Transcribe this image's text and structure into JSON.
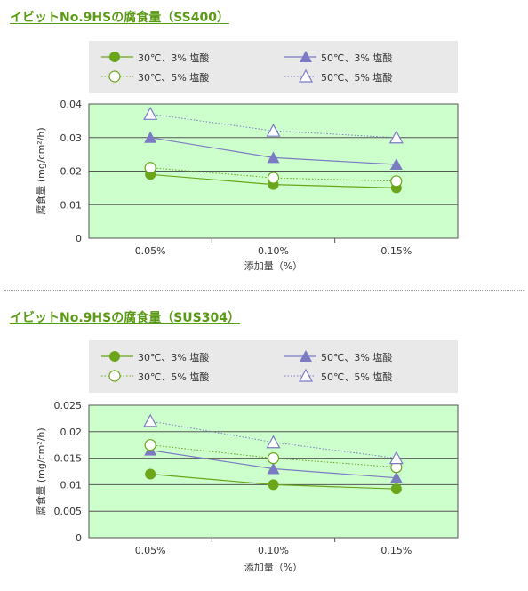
{
  "sections": [
    {
      "title": "イビットNo.9HSの腐食量（SS400）",
      "legend": [
        {
          "label": "30℃、3% 塩酸"
        },
        {
          "label": "50℃、3% 塩酸"
        },
        {
          "label": "30℃、5% 塩酸"
        },
        {
          "label": "50℃、5% 塩酸"
        }
      ]
    },
    {
      "title": "イビットNo.9HSの腐食量（SUS304）",
      "legend": [
        {
          "label": "30℃、3% 塩酸"
        },
        {
          "label": "50℃、3% 塩酸"
        },
        {
          "label": "30℃、5% 塩酸"
        },
        {
          "label": "50℃、5% 塩酸"
        }
      ]
    }
  ],
  "colors": {
    "green": "#6aa51a",
    "purple": "#7b7bc4",
    "plot_bg": "#ccffcc",
    "grid": "#555555"
  },
  "chart_data": [
    {
      "type": "line",
      "title": "イビットNo.9HSの腐食量（SS400）",
      "xlabel": "添加量（%）",
      "ylabel": "腐食量 (mg/cm²/h)",
      "categories": [
        "0.05%",
        "0.10%",
        "0.15%"
      ],
      "ylim": [
        0,
        0.04
      ],
      "yticks": [
        "0",
        "0.01",
        "0.02",
        "0.03",
        "0.04"
      ],
      "ytick_values": [
        0,
        0.01,
        0.02,
        0.03,
        0.04
      ],
      "grid": true,
      "legend_position": "top",
      "series": [
        {
          "name": "30℃、3% 塩酸",
          "values": [
            0.019,
            0.016,
            0.015
          ],
          "color": "#6aa51a",
          "marker": "circle-filled",
          "line": "solid"
        },
        {
          "name": "50℃、3% 塩酸",
          "values": [
            0.03,
            0.024,
            0.022
          ],
          "color": "#7b7bc4",
          "marker": "triangle-filled",
          "line": "solid"
        },
        {
          "name": "30℃、5% 塩酸",
          "values": [
            0.021,
            0.018,
            0.017
          ],
          "color": "#6aa51a",
          "marker": "circle-open",
          "line": "dotted"
        },
        {
          "name": "50℃、5% 塩酸",
          "values": [
            0.037,
            0.032,
            0.03
          ],
          "color": "#7b7bc4",
          "marker": "triangle-open",
          "line": "dotted"
        }
      ]
    },
    {
      "type": "line",
      "title": "イビットNo.9HSの腐食量（SUS304）",
      "xlabel": "添加量（%）",
      "ylabel": "腐食量 (mg/cm²/h)",
      "categories": [
        "0.05%",
        "0.10%",
        "0.15%"
      ],
      "ylim": [
        0,
        0.025
      ],
      "yticks": [
        "0",
        "0.005",
        "0.01",
        "0.015",
        "0.02",
        "0.025"
      ],
      "ytick_values": [
        0,
        0.005,
        0.01,
        0.015,
        0.02,
        0.025
      ],
      "grid": true,
      "legend_position": "top",
      "series": [
        {
          "name": "30℃、3% 塩酸",
          "values": [
            0.012,
            0.01,
            0.0092
          ],
          "color": "#6aa51a",
          "marker": "circle-filled",
          "line": "solid"
        },
        {
          "name": "50℃、3% 塩酸",
          "values": [
            0.0165,
            0.013,
            0.0113
          ],
          "color": "#7b7bc4",
          "marker": "triangle-filled",
          "line": "solid"
        },
        {
          "name": "30℃、5% 塩酸",
          "values": [
            0.0175,
            0.015,
            0.0133
          ],
          "color": "#6aa51a",
          "marker": "circle-open",
          "line": "dotted"
        },
        {
          "name": "50℃、5% 塩酸",
          "values": [
            0.022,
            0.018,
            0.015
          ],
          "color": "#7b7bc4",
          "marker": "triangle-open",
          "line": "dotted"
        }
      ]
    }
  ]
}
